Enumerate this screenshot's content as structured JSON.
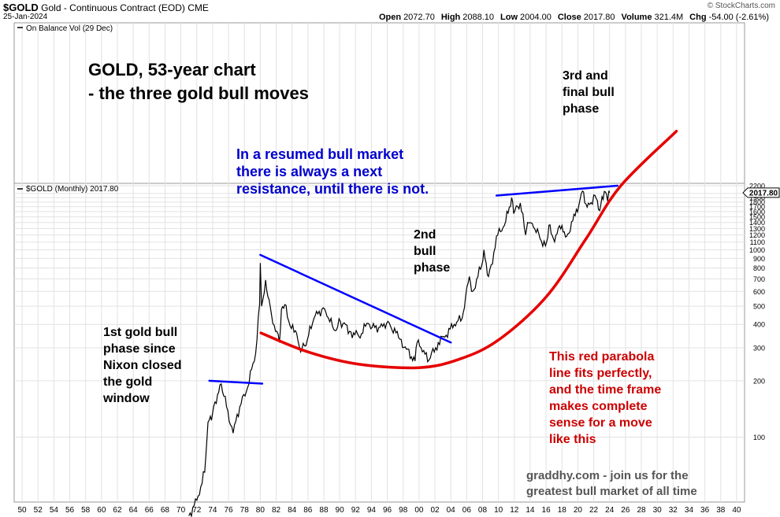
{
  "header": {
    "symbol": "$GOLD",
    "description": "Gold - Continuous Contract (EOD)",
    "exchange": "CME",
    "date": "25-Jan-2024",
    "copyright": "© StockCharts.com",
    "ohlc": [
      {
        "k": "Open",
        "v": "2072.70"
      },
      {
        "k": "High",
        "v": "2088.10"
      },
      {
        "k": "Low",
        "v": "2004.00"
      },
      {
        "k": "Close",
        "v": "2017.80"
      },
      {
        "k": "Volume",
        "v": "321.4M"
      },
      {
        "k": "Chg",
        "v": "-54.00 (-2.61%)"
      }
    ]
  },
  "panels": {
    "obv_label": "On Balance Vol (29 Dec)",
    "price_label": "$GOLD (Monthly) 2017.80",
    "last_price_tag": "2017.80"
  },
  "annotations": {
    "title_line1": "GOLD, 53-year chart",
    "title_line2": "- the three gold bull moves",
    "third_phase": [
      "3rd and",
      "final bull",
      "phase"
    ],
    "resistance": [
      "In a resumed bull market",
      "there is always a next",
      "resistance, until there is not."
    ],
    "second_phase": [
      "2nd",
      "bull",
      "phase"
    ],
    "first_phase": [
      "1st gold bull",
      "phase since",
      "Nixon closed",
      "the gold",
      "window"
    ],
    "parabola_note": [
      "This red parabola",
      "line fits perfectly,",
      "and the time frame",
      "makes complete",
      "sense for a move",
      "like this"
    ],
    "footer": [
      "graddhy.com - join us for the",
      "greatest bull market of all time"
    ]
  },
  "colors": {
    "price": "#000000",
    "parabola": "#e60000",
    "trendline": "#0000ff",
    "blue_text": "#0000cc",
    "red_text": "#cc0000",
    "gray_text": "#555555",
    "grid": "#e2e2e2"
  },
  "chart_data": {
    "type": "line",
    "scale": "log",
    "x_tick_labels": [
      "50",
      "52",
      "54",
      "56",
      "58",
      "60",
      "62",
      "64",
      "66",
      "68",
      "70",
      "72",
      "74",
      "76",
      "78",
      "80",
      "82",
      "84",
      "86",
      "88",
      "90",
      "92",
      "94",
      "96",
      "98",
      "00",
      "02",
      "04",
      "06",
      "08",
      "10",
      "12",
      "14",
      "16",
      "18",
      "20",
      "22",
      "24",
      "26",
      "28",
      "30",
      "32",
      "34",
      "36",
      "38",
      "40"
    ],
    "y_tick_labels": [
      "2200",
      "2000",
      "1900",
      "1800",
      "1700",
      "1600",
      "1500",
      "1400",
      "1300",
      "1200",
      "1100",
      "1000",
      "900",
      "800",
      "700",
      "600",
      "500",
      "400",
      "300",
      "200",
      "100"
    ],
    "y_ticks": [
      2200,
      2000,
      1900,
      1800,
      1700,
      1600,
      1500,
      1400,
      1300,
      1200,
      1100,
      1000,
      900,
      800,
      700,
      600,
      500,
      400,
      300,
      200,
      100
    ],
    "series": [
      {
        "values": [
          [
            "1971-01",
            38
          ],
          [
            "1972-01",
            46
          ],
          [
            "1973-01",
            65
          ],
          [
            "1973-06",
            120
          ],
          [
            "1974-01",
            135
          ],
          [
            "1974-12",
            190
          ],
          [
            "1975-06",
            165
          ],
          [
            "1976-08",
            105
          ],
          [
            "1977-06",
            145
          ],
          [
            "1978-06",
            185
          ],
          [
            "1979-06",
            280
          ],
          [
            "1979-12",
            512
          ],
          [
            "1980-01",
            850
          ],
          [
            "1980-03",
            500
          ],
          [
            "1980-09",
            690
          ],
          [
            "1981-06",
            450
          ],
          [
            "1982-06",
            320
          ],
          [
            "1982-09",
            480
          ],
          [
            "1983-02",
            510
          ],
          [
            "1983-12",
            380
          ],
          [
            "1984-06",
            370
          ],
          [
            "1985-02",
            285
          ],
          [
            "1985-12",
            330
          ],
          [
            "1986-10",
            430
          ],
          [
            "1987-12",
            490
          ],
          [
            "1988-06",
            440
          ],
          [
            "1989-06",
            370
          ],
          [
            "1990-02",
            415
          ],
          [
            "1991-06",
            365
          ],
          [
            "1992-06",
            345
          ],
          [
            "1993-08",
            405
          ],
          [
            "1994-06",
            385
          ],
          [
            "1995-06",
            390
          ],
          [
            "1996-02",
            415
          ],
          [
            "1997-06",
            340
          ],
          [
            "1998-06",
            295
          ],
          [
            "1999-07",
            255
          ],
          [
            "1999-10",
            320
          ],
          [
            "2000-06",
            285
          ],
          [
            "2001-04",
            258
          ],
          [
            "2002-06",
            320
          ],
          [
            "2003-06",
            350
          ],
          [
            "2004-06",
            400
          ],
          [
            "2005-06",
            430
          ],
          [
            "2006-05",
            720
          ],
          [
            "2006-10",
            600
          ],
          [
            "2007-12",
            830
          ],
          [
            "2008-03",
            1000
          ],
          [
            "2008-10",
            720
          ],
          [
            "2009-12",
            1200
          ],
          [
            "2010-12",
            1420
          ],
          [
            "2011-09",
            1900
          ],
          [
            "2011-12",
            1560
          ],
          [
            "2012-10",
            1780
          ],
          [
            "2013-06",
            1200
          ],
          [
            "2013-09",
            1400
          ],
          [
            "2014-06",
            1320
          ],
          [
            "2015-12",
            1050
          ],
          [
            "2016-07",
            1360
          ],
          [
            "2016-12",
            1150
          ],
          [
            "2018-01",
            1350
          ],
          [
            "2018-08",
            1180
          ],
          [
            "2019-09",
            1520
          ],
          [
            "2020-08",
            2060
          ],
          [
            "2021-03",
            1690
          ],
          [
            "2022-03",
            1950
          ],
          [
            "2022-10",
            1620
          ],
          [
            "2023-05",
            2050
          ],
          [
            "2023-10",
            1820
          ],
          [
            "2023-12",
            2070
          ],
          [
            "2024-01",
            2017.8
          ]
        ]
      }
    ],
    "parabola": [
      [
        "1980-02",
        360
      ],
      [
        "1986-01",
        285
      ],
      [
        "1992-06",
        245
      ],
      [
        "2000-01",
        235
      ],
      [
        "2005-01",
        260
      ],
      [
        "2010-01",
        330
      ],
      [
        "2016-01",
        560
      ],
      [
        "2021-01",
        1140
      ],
      [
        "2025-06",
        2200
      ],
      [
        "2032-06",
        4300
      ]
    ],
    "trendlines": [
      [
        [
          "1980-01",
          940
        ],
        [
          "2004-01",
          320
        ]
      ],
      [
        [
          "1973-08",
          200
        ],
        [
          "1980-04",
          193
        ]
      ],
      [
        [
          "2009-10",
          1950
        ],
        [
          "2025-01",
          2200
        ]
      ]
    ]
  }
}
